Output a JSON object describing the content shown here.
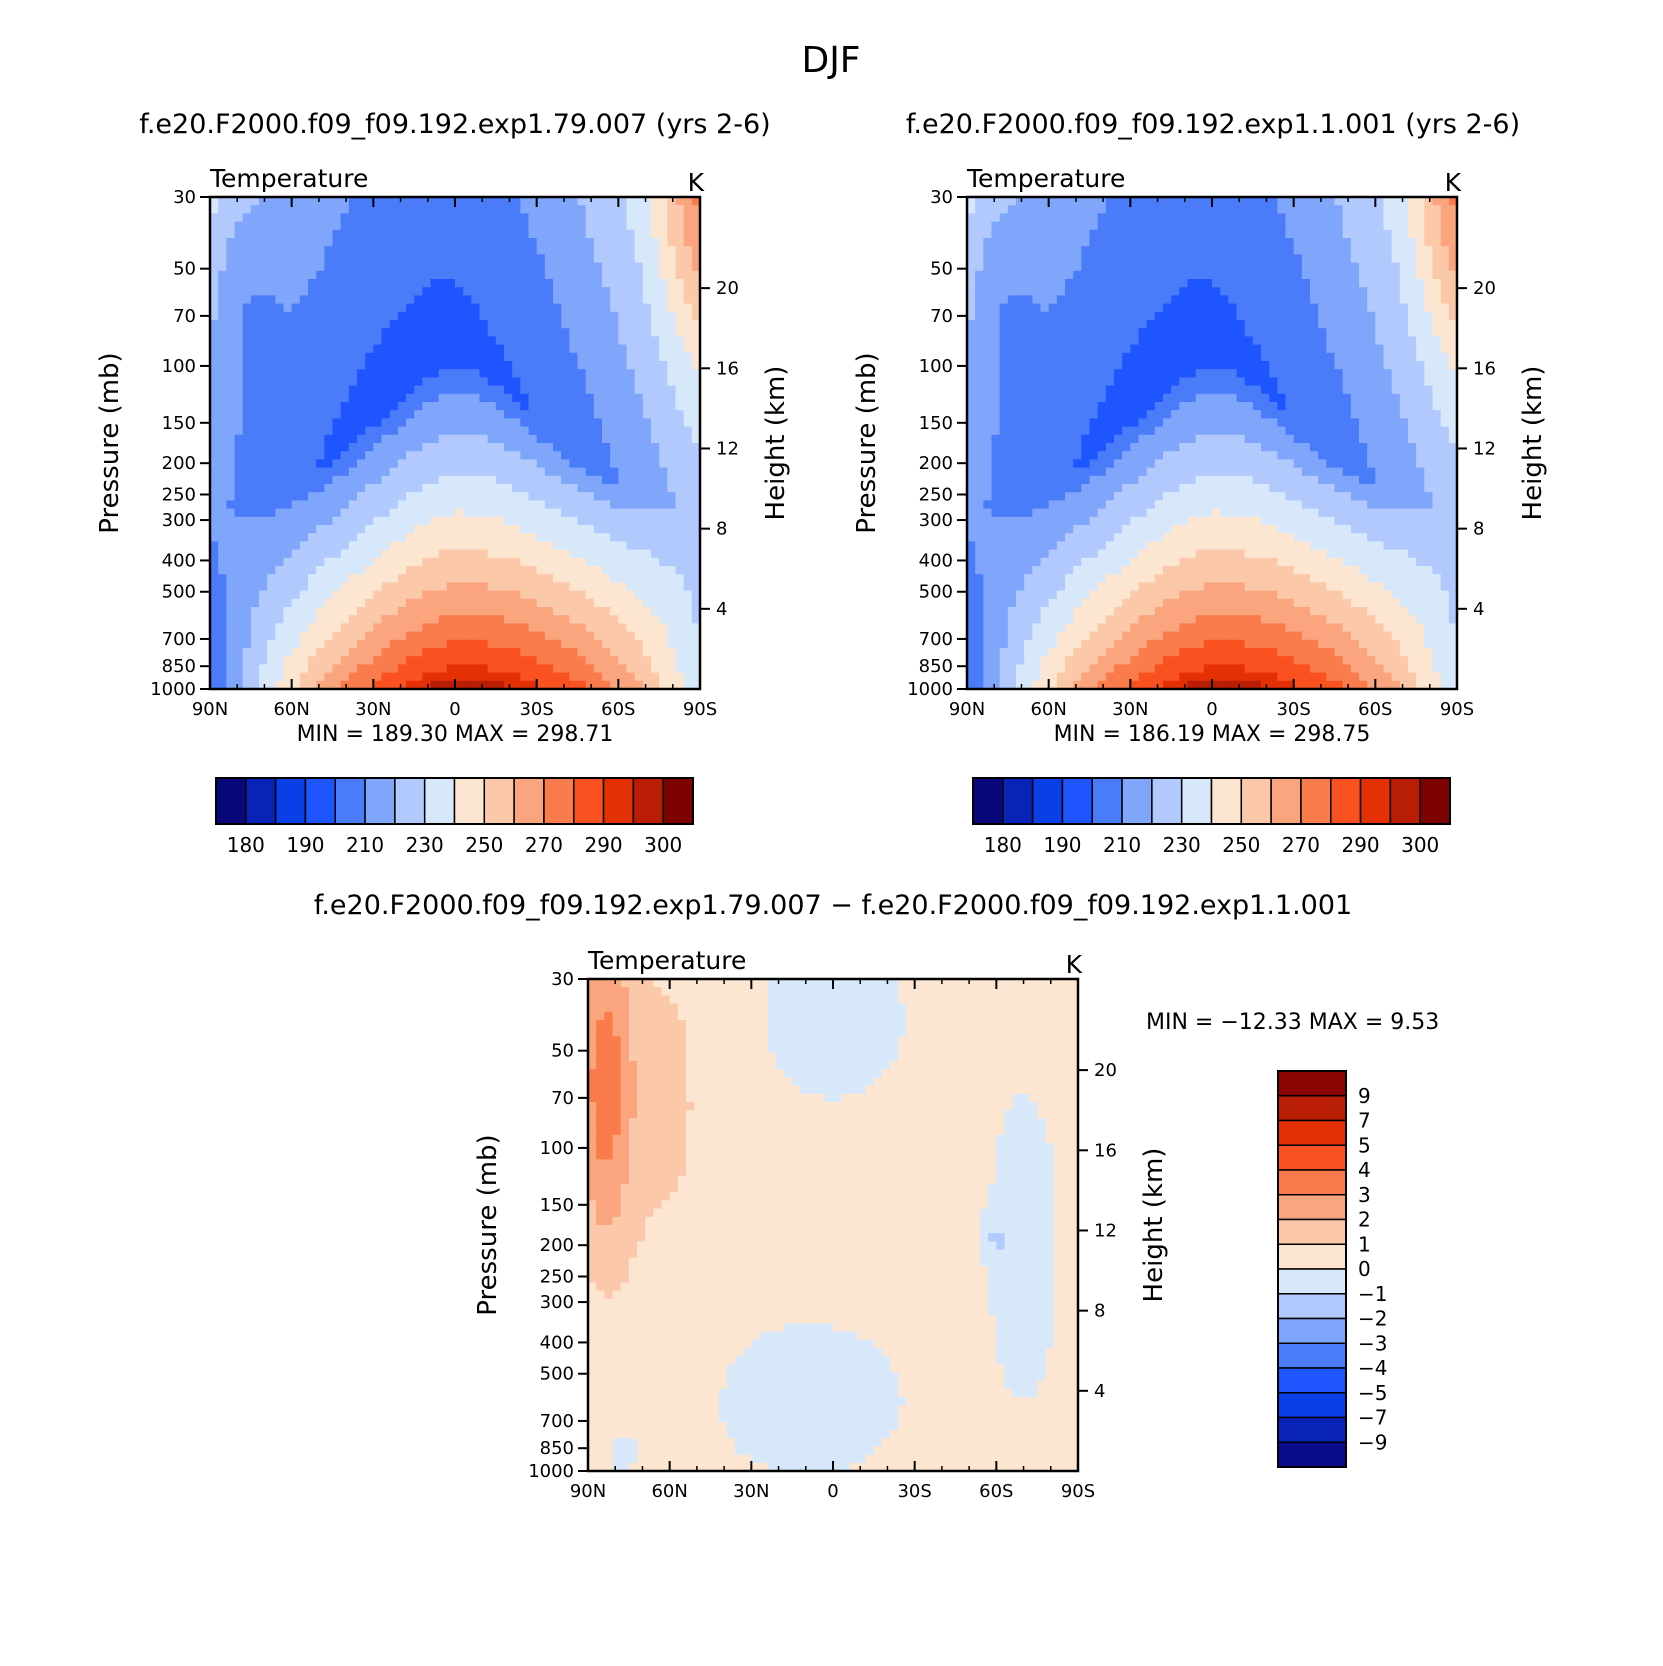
{
  "title": "DJF",
  "colors": {
    "abs_palette": [
      "#08087a",
      "#0922b8",
      "#0a3ee6",
      "#1f55ff",
      "#4a7cfa",
      "#7fa6fb",
      "#b1c9fd",
      "#d8e8fb",
      "#fde6d1",
      "#fcc8aa",
      "#fba57f",
      "#fa7c4c",
      "#fa5120",
      "#e33004",
      "#b91e04",
      "#7d0303"
    ],
    "diff_palette": [
      "#0a0a8c",
      "#0922b8",
      "#0a3ee6",
      "#1f55ff",
      "#4a7cfa",
      "#7fa6fb",
      "#b1c9fd",
      "#d8e8fb",
      "#fde6d1",
      "#fcc8aa",
      "#fba57f",
      "#fa7c4c",
      "#fa5120",
      "#e33004",
      "#b91e04",
      "#8a0404"
    ]
  },
  "chart_data": [
    {
      "type": "heatmap",
      "subtitle": "f.e20.F2000.f09_f09.192.exp1.79.007 (yrs 2-6)",
      "variable_label": "Temperature",
      "units_label": "K",
      "ylabel": "Pressure (mb)",
      "y2label": "Height (km)",
      "x_ticks": [
        "90N",
        "60N",
        "30N",
        "0",
        "30S",
        "60S",
        "90S"
      ],
      "y_ticks": [
        "30",
        "50",
        "70",
        "100",
        "150",
        "200",
        "250",
        "300",
        "400",
        "500",
        "700",
        "850",
        "1000"
      ],
      "y2_ticks": [
        "20",
        "16",
        "12",
        "8",
        "4"
      ],
      "xlim": [
        -90,
        90
      ],
      "ylim": [
        1000,
        30
      ],
      "y_scale": "log",
      "minmax_text": "MIN = 189.30   MAX = 298.71",
      "min": 189.3,
      "max": 298.71,
      "colorbar": {
        "orientation": "horizontal",
        "labels": [
          "180",
          "190",
          "210",
          "230",
          "250",
          "270",
          "290",
          "300"
        ]
      }
    },
    {
      "type": "heatmap",
      "subtitle": "f.e20.F2000.f09_f09.192.exp1.1.001 (yrs 2-6)",
      "variable_label": "Temperature",
      "units_label": "K",
      "ylabel": "Pressure (mb)",
      "y2label": "Height (km)",
      "x_ticks": [
        "90N",
        "60N",
        "30N",
        "0",
        "30S",
        "60S",
        "90S"
      ],
      "y_ticks": [
        "30",
        "50",
        "70",
        "100",
        "150",
        "200",
        "250",
        "300",
        "400",
        "500",
        "700",
        "850",
        "1000"
      ],
      "y2_ticks": [
        "20",
        "16",
        "12",
        "8",
        "4"
      ],
      "xlim": [
        -90,
        90
      ],
      "ylim": [
        1000,
        30
      ],
      "y_scale": "log",
      "minmax_text": "MIN = 186.19   MAX = 298.75",
      "min": 186.19,
      "max": 298.75,
      "colorbar": {
        "orientation": "horizontal",
        "labels": [
          "180",
          "190",
          "210",
          "230",
          "250",
          "270",
          "290",
          "300"
        ]
      }
    },
    {
      "type": "heatmap",
      "subtitle": "f.e20.F2000.f09_f09.192.exp1.79.007 − f.e20.F2000.f09_f09.192.exp1.1.001",
      "variable_label": "Temperature",
      "units_label": "K",
      "ylabel": "Pressure (mb)",
      "y2label": "Height (km)",
      "x_ticks": [
        "90N",
        "60N",
        "30N",
        "0",
        "30S",
        "60S",
        "90S"
      ],
      "y_ticks": [
        "30",
        "50",
        "70",
        "100",
        "150",
        "200",
        "250",
        "300",
        "400",
        "500",
        "700",
        "850",
        "1000"
      ],
      "y2_ticks": [
        "20",
        "16",
        "12",
        "8",
        "4"
      ],
      "xlim": [
        -90,
        90
      ],
      "ylim": [
        1000,
        30
      ],
      "y_scale": "log",
      "minmax_text": "MIN = −12.33   MAX =    9.53",
      "min": -12.33,
      "max": 9.53,
      "colorbar": {
        "orientation": "vertical",
        "labels": [
          "9",
          "7",
          "5",
          "4",
          "3",
          "2",
          "1",
          "0",
          "−1",
          "−2",
          "−3",
          "−4",
          "−5",
          "−7",
          "−9"
        ]
      }
    }
  ]
}
